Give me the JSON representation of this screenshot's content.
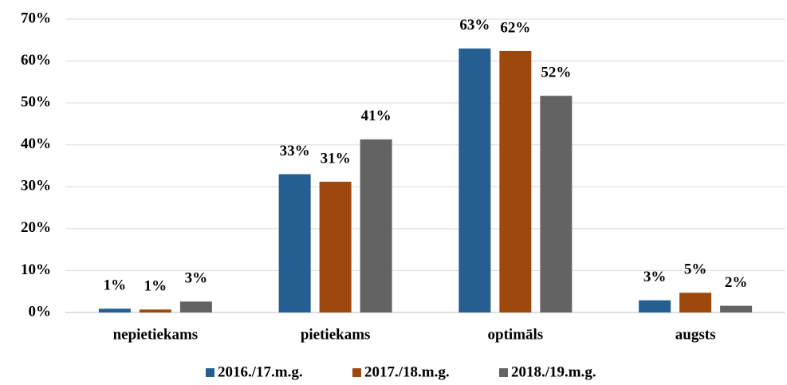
{
  "chart_data": {
    "type": "bar",
    "categories": [
      "nepietiekams",
      "pietiekams",
      "optimāls",
      "augsts"
    ],
    "series": [
      {
        "name": "2016./17.m.g.",
        "color": "#255e91",
        "values": [
          0.9,
          33,
          63,
          2.9
        ],
        "value_labels": [
          "1%",
          "33%",
          "63%",
          "3%"
        ]
      },
      {
        "name": "2017./18.m.g.",
        "color": "#9e480e",
        "values": [
          0.7,
          31.2,
          62.4,
          4.7
        ],
        "value_labels": [
          "1%",
          "31%",
          "62%",
          "5%"
        ]
      },
      {
        "name": "2018./19.m.g.",
        "color": "#636363",
        "values": [
          2.6,
          41.3,
          51.7,
          1.6
        ],
        "value_labels": [
          "3%",
          "41%",
          "52%",
          "2%"
        ]
      }
    ],
    "ylim": [
      0,
      70
    ],
    "yticks": [
      {
        "value": 0,
        "label": "0%"
      },
      {
        "value": 10,
        "label": "10%"
      },
      {
        "value": 20,
        "label": "20%"
      },
      {
        "value": 30,
        "label": "30%"
      },
      {
        "value": 40,
        "label": "40%"
      },
      {
        "value": 50,
        "label": "50%"
      },
      {
        "value": 60,
        "label": "60%"
      },
      {
        "value": 70,
        "label": "70%"
      }
    ],
    "grid": true,
    "legend": "bottom"
  }
}
